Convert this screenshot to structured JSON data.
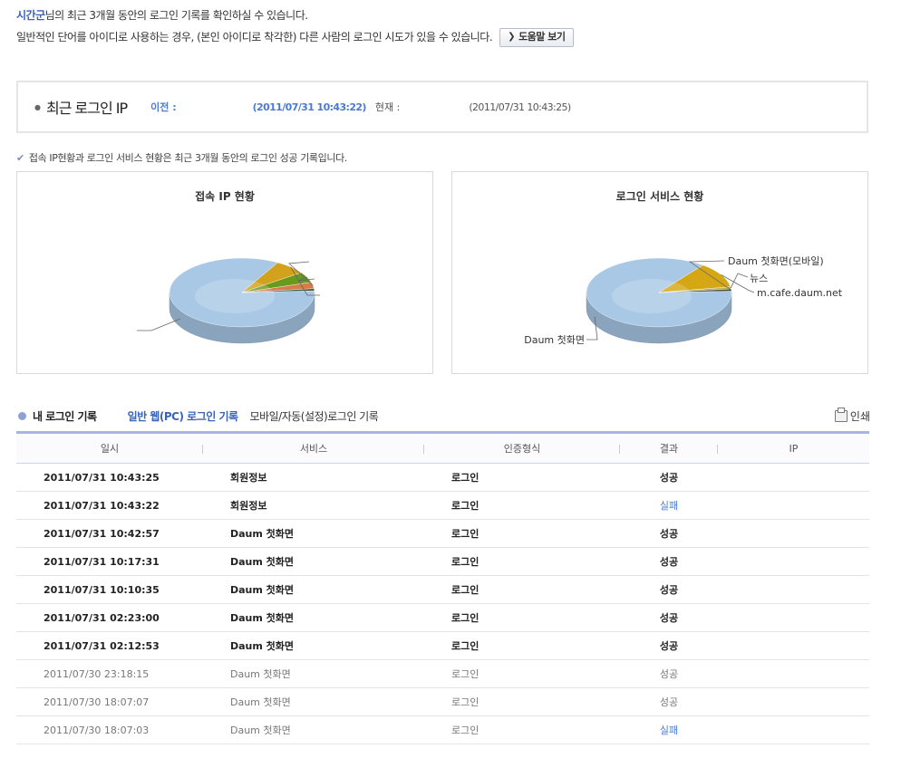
{
  "intro": {
    "username": "시간군",
    "line1_rest": "님의 최근 3개월 동안의 로그인 기록를 확인하실 수 있습니다.",
    "line2": "일반적인 단어를 아이디로 사용하는 경우, (본인 아이디로 착각한) 다른 사람의 로그인 시도가 있을 수 있습니다.",
    "help_button": "도움말 보기"
  },
  "recent_ip": {
    "title": "최근 로그인 IP",
    "prev_label": "이전 :",
    "prev_time": "(2011/07/31 10:43:22)",
    "current_label": "현재 :",
    "current_time": "(2011/07/31 10:43:25)"
  },
  "note": "접속 IP현황과 로그인 서비스 현황은 최근 3개월 동안의 로그인 성공 기록입니다.",
  "chart_data": [
    {
      "type": "pie",
      "title": "접속 IP 현황",
      "slices": [
        {
          "label": "",
          "value": 84,
          "color": "#a9c8e6"
        },
        {
          "label": "",
          "value": 7,
          "color": "#d2a21c"
        },
        {
          "label": "",
          "value": 5,
          "color": "#6a9a1c"
        },
        {
          "label": "",
          "value": 3,
          "color": "#d87a4a"
        },
        {
          "label": "",
          "value": 1,
          "color": "#3f5a3a"
        }
      ]
    },
    {
      "type": "pie",
      "title": "로그인 서비스 현황",
      "slices": [
        {
          "label": "Daum 첫화면",
          "value": 86,
          "color": "#a9c8e6"
        },
        {
          "label": "m.cafe.daum.net",
          "value": 12,
          "color": "#d6a714"
        },
        {
          "label": "뉴스",
          "value": 1,
          "color": "#b8b24c"
        },
        {
          "label": "Daum 첫화면(모바일)",
          "value": 1,
          "color": "#4b4b38"
        }
      ]
    }
  ],
  "log": {
    "title": "내 로그인 기록",
    "tab_pc": "일반 웹(PC) 로그인 기록",
    "tab_mobile": "모바일/자동(설정)로그인 기록",
    "print": "인쇄",
    "headers": [
      "일시",
      "서비스",
      "인증형식",
      "결과",
      "IP"
    ],
    "rows": [
      {
        "date": "2011/07/31  10:43:25",
        "service": "회원정보",
        "auth": "로그인",
        "result": "성공",
        "ip": "",
        "style": "recent"
      },
      {
        "date": "2011/07/31  10:43:22",
        "service": "회원정보",
        "auth": "로그인",
        "result": "실패",
        "ip": "",
        "style": "recent"
      },
      {
        "date": "2011/07/31  10:42:57",
        "service": "Daum 첫화면",
        "auth": "로그인",
        "result": "성공",
        "ip": "",
        "style": "recent"
      },
      {
        "date": "2011/07/31  10:17:31",
        "service": "Daum 첫화면",
        "auth": "로그인",
        "result": "성공",
        "ip": "",
        "style": "recent"
      },
      {
        "date": "2011/07/31  10:10:35",
        "service": "Daum 첫화면",
        "auth": "로그인",
        "result": "성공",
        "ip": "",
        "style": "recent"
      },
      {
        "date": "2011/07/31  02:23:00",
        "service": "Daum 첫화면",
        "auth": "로그인",
        "result": "성공",
        "ip": "",
        "style": "recent"
      },
      {
        "date": "2011/07/31  02:12:53",
        "service": "Daum 첫화면",
        "auth": "로그인",
        "result": "성공",
        "ip": "",
        "style": "recent"
      },
      {
        "date": "2011/07/30 23:18:15",
        "service": "Daum 첫화면",
        "auth": "로그인",
        "result": "성공",
        "ip": "",
        "style": "old"
      },
      {
        "date": "2011/07/30 18:07:07",
        "service": "Daum 첫화면",
        "auth": "로그인",
        "result": "성공",
        "ip": "",
        "style": "old"
      },
      {
        "date": "2011/07/30 18:07:03",
        "service": "Daum 첫화면",
        "auth": "로그인",
        "result": "실패",
        "ip": "",
        "style": "old"
      }
    ]
  }
}
